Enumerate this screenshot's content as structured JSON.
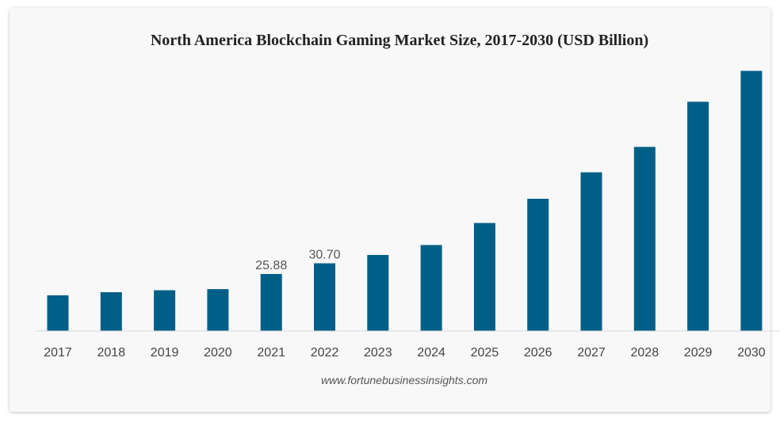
{
  "chart_data": {
    "type": "bar",
    "title": "North America Blockchain Gaming Market Size, 2017-2030 (USD Billion)",
    "categories": [
      "2017",
      "2018",
      "2019",
      "2020",
      "2021",
      "2022",
      "2023",
      "2024",
      "2025",
      "2026",
      "2027",
      "2028",
      "2029",
      "2030"
    ],
    "values": [
      16.2,
      17.6,
      18.5,
      19.0,
      25.88,
      30.7,
      34.5,
      39.0,
      49.0,
      60.0,
      72.0,
      83.5,
      104.0,
      118.0
    ],
    "data_labels": [
      "",
      "",
      "",
      "",
      "25.88",
      "30.70",
      "",
      "",
      "",
      "",
      "",
      "",
      "",
      ""
    ],
    "ylim": [
      0,
      125
    ],
    "grid": false,
    "bar_color": "#005f87"
  },
  "source": "www.fortunebusinessinsights.com"
}
